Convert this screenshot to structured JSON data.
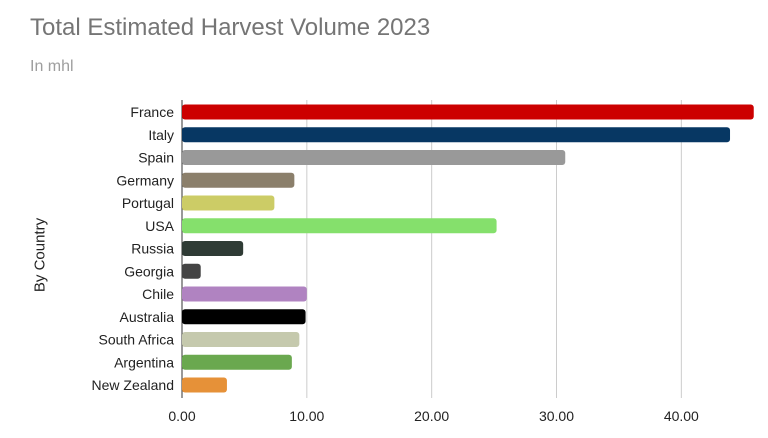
{
  "chart_data": {
    "type": "bar",
    "orientation": "horizontal",
    "title": "Total Estimated Harvest Volume 2023",
    "subtitle": "In mhl",
    "ylabel": "By Country",
    "xlabel": "",
    "xlim": [
      0,
      45.5
    ],
    "xticks": [
      "0.00",
      "10.00",
      "20.00",
      "30.00",
      "40.00"
    ],
    "grid": true,
    "categories": [
      "France",
      "Italy",
      "Spain",
      "Germany",
      "Portugal",
      "USA",
      "Russia",
      "Georgia",
      "Chile",
      "Australia",
      "South Africa",
      "Argentina",
      "New Zealand"
    ],
    "values": [
      45.8,
      43.9,
      30.7,
      9.0,
      7.4,
      25.2,
      4.9,
      1.5,
      10.0,
      9.9,
      9.4,
      8.8,
      3.6
    ],
    "colors": [
      "#cc0000",
      "#073763",
      "#999999",
      "#8b7f6b",
      "#cccc66",
      "#85e06c",
      "#2f3b35",
      "#444444",
      "#b083c1",
      "#000000",
      "#c5c9ad",
      "#6aa84f",
      "#e69138"
    ]
  }
}
